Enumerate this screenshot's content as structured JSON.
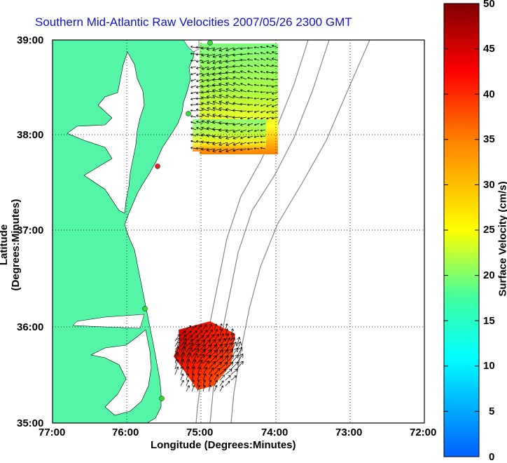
{
  "title": "Southern Mid-Atlantic Raw Velocities 2007/05/26 2300 GMT",
  "x_axis_label": "Longitude (Degrees:Minutes)",
  "y_axis_label": "Latitude (Degrees:Minutes)",
  "colorbar_label": "Surface Velocity (cm/s)",
  "x_ticks": [
    "77:00",
    "76:00",
    "75:00",
    "74:00",
    "73:00",
    "72:00"
  ],
  "y_ticks": [
    "39:00",
    "38:00",
    "37:00",
    "36:00",
    "35:00"
  ],
  "colorbar_ticks": [
    "50",
    "45",
    "40",
    "35",
    "30",
    "25",
    "20",
    "15",
    "10",
    "5",
    "0"
  ],
  "colors": {
    "land": "#55f5a8",
    "water": "#ffffff",
    "title": "#1010d0",
    "station_marker": "#33dd33",
    "station_marker_alert": "#dd2222"
  }
}
